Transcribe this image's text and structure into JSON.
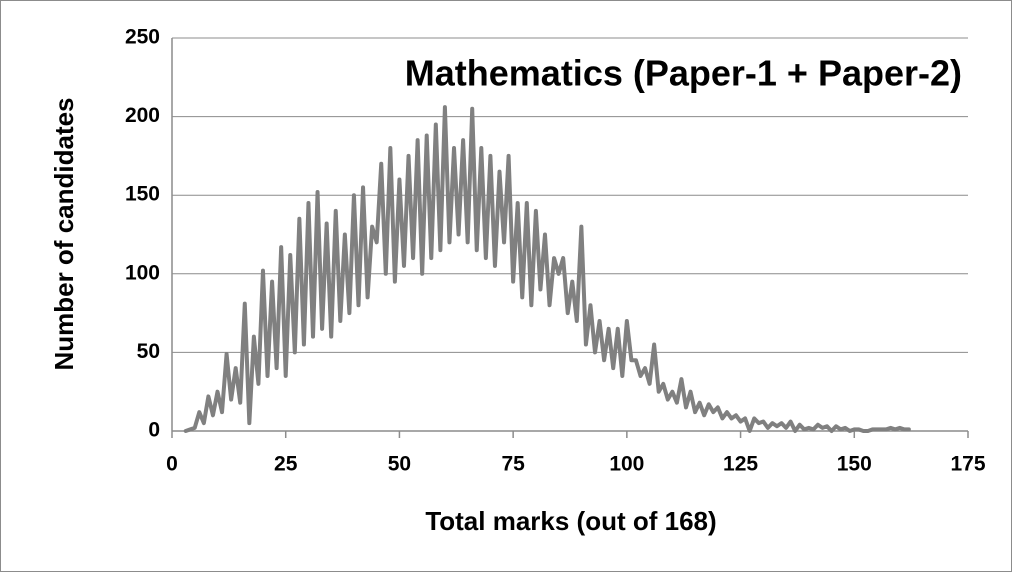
{
  "chart_data": {
    "type": "line",
    "title": "Mathematics (Paper-1 + Paper-2)",
    "xlabel": "Total marks (out of 168)",
    "ylabel": "Number of candidates",
    "color": "#808080",
    "x": [
      3,
      4,
      5,
      6,
      7,
      8,
      9,
      10,
      11,
      12,
      13,
      14,
      15,
      16,
      17,
      18,
      19,
      20,
      21,
      22,
      23,
      24,
      25,
      26,
      27,
      28,
      29,
      30,
      31,
      32,
      33,
      34,
      35,
      36,
      37,
      38,
      39,
      40,
      41,
      42,
      43,
      44,
      45,
      46,
      47,
      48,
      49,
      50,
      51,
      52,
      53,
      54,
      55,
      56,
      57,
      58,
      59,
      60,
      61,
      62,
      63,
      64,
      65,
      66,
      67,
      68,
      69,
      70,
      71,
      72,
      73,
      74,
      75,
      76,
      77,
      78,
      79,
      80,
      81,
      82,
      83,
      84,
      85,
      86,
      87,
      88,
      89,
      90,
      91,
      92,
      93,
      94,
      95,
      96,
      97,
      98,
      99,
      100,
      101,
      102,
      103,
      104,
      105,
      106,
      107,
      108,
      109,
      110,
      111,
      112,
      113,
      114,
      115,
      116,
      117,
      118,
      119,
      120,
      121,
      122,
      123,
      124,
      125,
      126,
      127,
      128,
      129,
      130,
      131,
      132,
      133,
      134,
      135,
      136,
      137,
      138,
      139,
      140,
      141,
      142,
      143,
      144,
      145,
      146,
      147,
      148,
      149,
      150,
      151,
      152,
      153,
      154,
      155,
      156,
      157,
      158,
      159,
      160,
      161,
      162
    ],
    "values": [
      0,
      1,
      2,
      12,
      5,
      22,
      10,
      25,
      12,
      49,
      20,
      40,
      18,
      81,
      5,
      60,
      30,
      102,
      35,
      95,
      40,
      117,
      35,
      112,
      50,
      135,
      55,
      145,
      60,
      152,
      65,
      132,
      60,
      140,
      70,
      125,
      75,
      150,
      80,
      155,
      85,
      130,
      120,
      170,
      100,
      180,
      95,
      160,
      105,
      175,
      110,
      185,
      100,
      188,
      110,
      195,
      115,
      206,
      120,
      180,
      125,
      185,
      120,
      205,
      115,
      180,
      110,
      175,
      105,
      165,
      120,
      175,
      95,
      145,
      85,
      145,
      80,
      140,
      90,
      125,
      80,
      110,
      100,
      110,
      75,
      95,
      70,
      130,
      55,
      80,
      50,
      70,
      45,
      65,
      40,
      65,
      35,
      70,
      45,
      45,
      35,
      40,
      30,
      55,
      25,
      30,
      20,
      25,
      18,
      33,
      15,
      25,
      12,
      18,
      10,
      17,
      12,
      15,
      8,
      12,
      8,
      10,
      6,
      8,
      0,
      8,
      5,
      6,
      2,
      5,
      3,
      5,
      2,
      6,
      0,
      4,
      1,
      2,
      1,
      4,
      2,
      3,
      0,
      3,
      1,
      2,
      0,
      1,
      1,
      0,
      0,
      1,
      1,
      1,
      1,
      2,
      1,
      2,
      1,
      1
    ],
    "xlim": [
      0,
      175
    ],
    "xticks": [
      0,
      25,
      50,
      75,
      100,
      125,
      150,
      175
    ],
    "ylim": [
      0,
      250
    ],
    "yticks": [
      0,
      50,
      100,
      150,
      200,
      250
    ],
    "grid": true
  }
}
